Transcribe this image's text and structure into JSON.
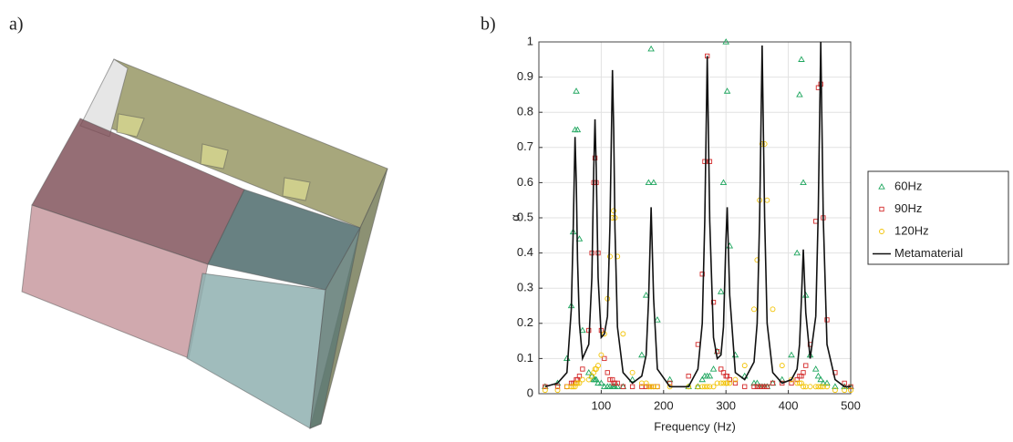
{
  "panel_a": {
    "label": "a)"
  },
  "chart_data": {
    "type": "line",
    "panel_label": "b)",
    "x_label": "Frequency (Hz)",
    "y_label": "α",
    "xlim": [
      0,
      500
    ],
    "xticks": [
      100,
      200,
      300,
      400,
      500
    ],
    "ylim": [
      0,
      1
    ],
    "yticks": [
      0,
      0.1,
      0.2,
      0.3,
      0.4,
      0.5,
      0.6,
      0.7,
      0.8,
      0.9,
      1
    ],
    "grid": true,
    "legend": "outside-right",
    "x": [
      10,
      30,
      45,
      52,
      55,
      58,
      60,
      62,
      65,
      70,
      80,
      85,
      88,
      90,
      92,
      95,
      100,
      105,
      110,
      114,
      118,
      120,
      122,
      126,
      135,
      150,
      165,
      172,
      176,
      180,
      184,
      190,
      210,
      240,
      255,
      262,
      266,
      270,
      274,
      280,
      286,
      292,
      296,
      300,
      302,
      306,
      315,
      330,
      345,
      350,
      354,
      358,
      362,
      366,
      375,
      390,
      405,
      414,
      418,
      421,
      424,
      428,
      435,
      444,
      448,
      452,
      456,
      462,
      475,
      490,
      500
    ],
    "series": [
      {
        "name": "60Hz",
        "color": "#1ea65e",
        "marker": "triangle",
        "values": [
          0.02,
          0.03,
          0.1,
          0.25,
          0.46,
          0.75,
          0.86,
          0.75,
          0.44,
          0.18,
          0.06,
          0.05,
          0.04,
          0.04,
          0.04,
          0.03,
          0.03,
          0.02,
          0.02,
          0.02,
          0.02,
          0.02,
          0.02,
          0.02,
          0.02,
          0.04,
          0.11,
          0.28,
          0.6,
          0.98,
          0.6,
          0.21,
          0.04,
          0.02,
          0.02,
          0.04,
          0.05,
          0.05,
          0.05,
          0.07,
          0.12,
          0.29,
          0.6,
          1.0,
          0.86,
          0.42,
          0.11,
          0.05,
          0.03,
          0.03,
          0.02,
          0.02,
          0.02,
          0.02,
          0.03,
          0.04,
          0.11,
          0.4,
          0.85,
          0.95,
          0.6,
          0.28,
          0.11,
          0.07,
          0.05,
          0.04,
          0.03,
          0.03,
          0.02,
          0.02,
          0.02
        ]
      },
      {
        "name": "90Hz",
        "color": "#d42a2a",
        "marker": "square",
        "values": [
          0.02,
          0.02,
          0.02,
          0.03,
          0.03,
          0.03,
          0.04,
          0.04,
          0.05,
          0.07,
          0.18,
          0.4,
          0.6,
          0.67,
          0.6,
          0.4,
          0.18,
          0.1,
          0.06,
          0.04,
          0.04,
          0.03,
          0.03,
          0.03,
          0.02,
          0.02,
          0.02,
          0.02,
          0.02,
          0.02,
          0.02,
          0.02,
          0.03,
          0.05,
          0.14,
          0.34,
          0.66,
          0.96,
          0.66,
          0.26,
          0.12,
          0.07,
          0.06,
          0.05,
          0.05,
          0.04,
          0.03,
          0.02,
          0.02,
          0.02,
          0.02,
          0.02,
          0.02,
          0.02,
          0.03,
          0.03,
          0.03,
          0.04,
          0.05,
          0.05,
          0.06,
          0.08,
          0.14,
          0.49,
          0.87,
          0.88,
          0.5,
          0.21,
          0.06,
          0.03,
          0.02
        ]
      },
      {
        "name": "120Hz",
        "color": "#f2c200",
        "marker": "circle",
        "values": [
          0.01,
          0.01,
          0.02,
          0.02,
          0.02,
          0.02,
          0.03,
          0.03,
          0.03,
          0.04,
          0.04,
          0.05,
          0.06,
          0.07,
          0.07,
          0.08,
          0.11,
          0.17,
          0.27,
          0.39,
          0.5,
          0.52,
          0.5,
          0.39,
          0.17,
          0.06,
          0.03,
          0.03,
          0.02,
          0.02,
          0.02,
          0.02,
          0.02,
          0.02,
          0.02,
          0.02,
          0.02,
          0.02,
          0.02,
          0.02,
          0.03,
          0.03,
          0.03,
          0.03,
          0.03,
          0.03,
          0.04,
          0.08,
          0.24,
          0.38,
          0.55,
          0.71,
          0.71,
          0.55,
          0.24,
          0.08,
          0.04,
          0.03,
          0.03,
          0.03,
          0.02,
          0.02,
          0.02,
          0.02,
          0.02,
          0.02,
          0.02,
          0.02,
          0.01,
          0.01,
          0.01
        ]
      },
      {
        "name": "Metamaterial",
        "color": "#111111",
        "marker": "line",
        "values": [
          0.02,
          0.03,
          0.06,
          0.24,
          0.46,
          0.73,
          0.6,
          0.38,
          0.2,
          0.1,
          0.14,
          0.33,
          0.64,
          0.78,
          0.64,
          0.33,
          0.16,
          0.17,
          0.22,
          0.48,
          0.92,
          0.75,
          0.47,
          0.19,
          0.06,
          0.03,
          0.05,
          0.11,
          0.27,
          0.53,
          0.27,
          0.07,
          0.02,
          0.02,
          0.07,
          0.2,
          0.49,
          0.96,
          0.49,
          0.16,
          0.1,
          0.11,
          0.19,
          0.44,
          0.53,
          0.28,
          0.06,
          0.04,
          0.09,
          0.2,
          0.5,
          0.99,
          0.5,
          0.2,
          0.06,
          0.03,
          0.04,
          0.07,
          0.14,
          0.27,
          0.41,
          0.23,
          0.1,
          0.22,
          0.52,
          1.0,
          0.5,
          0.14,
          0.04,
          0.02,
          0.02
        ]
      }
    ]
  }
}
